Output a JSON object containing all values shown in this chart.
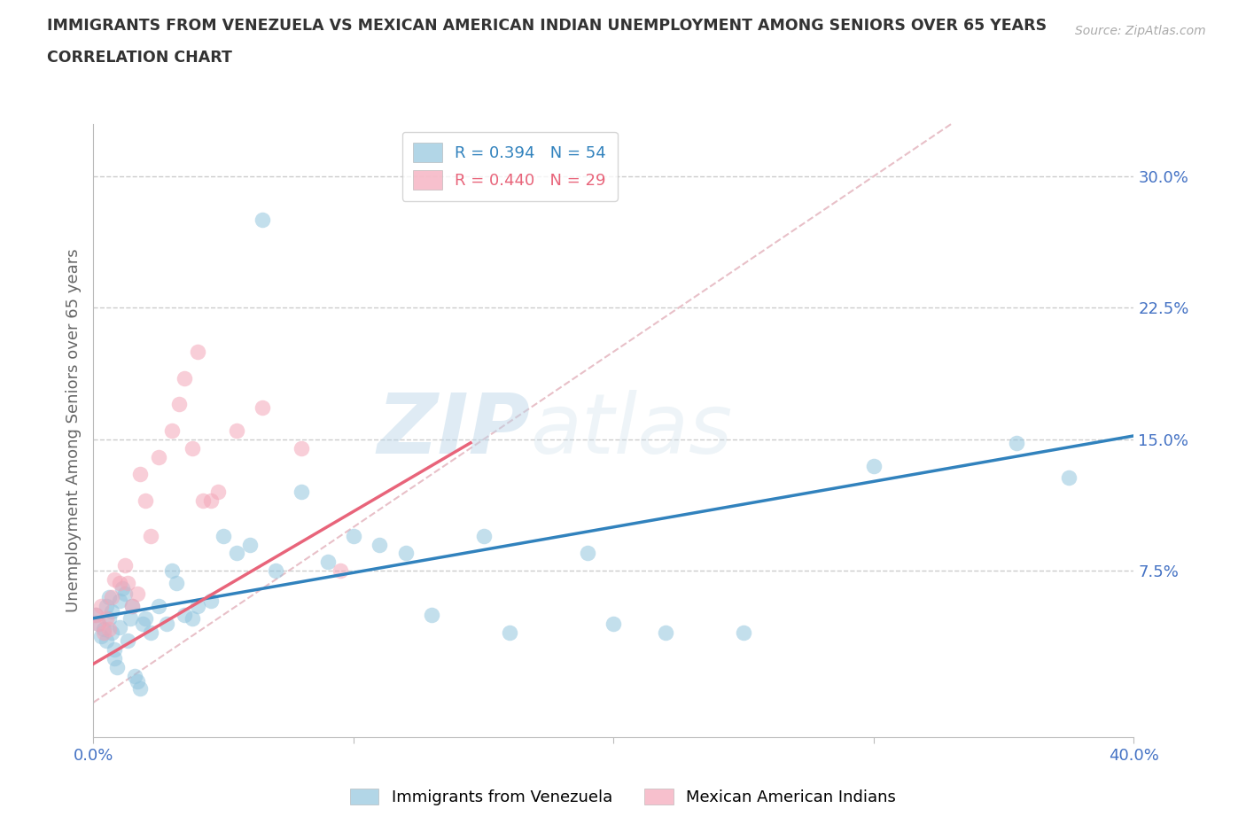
{
  "title_line1": "IMMIGRANTS FROM VENEZUELA VS MEXICAN AMERICAN INDIAN UNEMPLOYMENT AMONG SENIORS OVER 65 YEARS",
  "title_line2": "CORRELATION CHART",
  "source": "Source: ZipAtlas.com",
  "ylabel": "Unemployment Among Seniors over 65 years",
  "xlim": [
    0.0,
    0.4
  ],
  "ylim": [
    -0.02,
    0.33
  ],
  "plot_ylim": [
    -0.02,
    0.33
  ],
  "xticks": [
    0.0,
    0.1,
    0.2,
    0.3,
    0.4
  ],
  "xticklabels": [
    "0.0%",
    "",
    "",
    "",
    "40.0%"
  ],
  "yticks_right": [
    0.075,
    0.15,
    0.225,
    0.3
  ],
  "ytick_right_labels": [
    "7.5%",
    "15.0%",
    "22.5%",
    "30.0%"
  ],
  "grid_color": "#cccccc",
  "background_color": "#ffffff",
  "watermark": "ZIPatlas",
  "blue_color": "#92c5de",
  "pink_color": "#f4a6b8",
  "blue_line_color": "#3182bd",
  "pink_line_color": "#e8647a",
  "blue_label": "Immigrants from Venezuela",
  "pink_label": "Mexican American Indians",
  "blue_scatter_x": [
    0.001,
    0.002,
    0.003,
    0.004,
    0.005,
    0.005,
    0.006,
    0.006,
    0.007,
    0.007,
    0.008,
    0.008,
    0.009,
    0.01,
    0.01,
    0.011,
    0.012,
    0.013,
    0.014,
    0.015,
    0.016,
    0.017,
    0.018,
    0.019,
    0.02,
    0.022,
    0.025,
    0.028,
    0.03,
    0.032,
    0.035,
    0.038,
    0.04,
    0.045,
    0.05,
    0.055,
    0.06,
    0.065,
    0.07,
    0.08,
    0.09,
    0.1,
    0.11,
    0.12,
    0.13,
    0.15,
    0.16,
    0.19,
    0.2,
    0.22,
    0.25,
    0.3,
    0.355,
    0.375
  ],
  "blue_scatter_y": [
    0.05,
    0.045,
    0.038,
    0.042,
    0.035,
    0.055,
    0.06,
    0.048,
    0.04,
    0.052,
    0.03,
    0.025,
    0.02,
    0.043,
    0.058,
    0.065,
    0.062,
    0.035,
    0.048,
    0.055,
    0.015,
    0.012,
    0.008,
    0.045,
    0.048,
    0.04,
    0.055,
    0.045,
    0.075,
    0.068,
    0.05,
    0.048,
    0.055,
    0.058,
    0.095,
    0.085,
    0.09,
    0.275,
    0.075,
    0.12,
    0.08,
    0.095,
    0.09,
    0.085,
    0.05,
    0.095,
    0.04,
    0.085,
    0.045,
    0.04,
    0.04,
    0.135,
    0.148,
    0.128
  ],
  "pink_scatter_x": [
    0.001,
    0.002,
    0.003,
    0.004,
    0.005,
    0.006,
    0.007,
    0.008,
    0.01,
    0.012,
    0.013,
    0.015,
    0.017,
    0.018,
    0.02,
    0.022,
    0.025,
    0.03,
    0.033,
    0.035,
    0.038,
    0.04,
    0.042,
    0.045,
    0.048,
    0.055,
    0.065,
    0.08,
    0.095
  ],
  "pink_scatter_y": [
    0.05,
    0.045,
    0.055,
    0.04,
    0.048,
    0.042,
    0.06,
    0.07,
    0.068,
    0.078,
    0.068,
    0.055,
    0.062,
    0.13,
    0.115,
    0.095,
    0.14,
    0.155,
    0.17,
    0.185,
    0.145,
    0.2,
    0.115,
    0.115,
    0.12,
    0.155,
    0.168,
    0.145,
    0.075
  ],
  "blue_line_x": [
    0.0,
    0.4
  ],
  "blue_line_y": [
    0.048,
    0.152
  ],
  "pink_line_x": [
    0.0,
    0.145
  ],
  "pink_line_y": [
    0.022,
    0.148
  ]
}
